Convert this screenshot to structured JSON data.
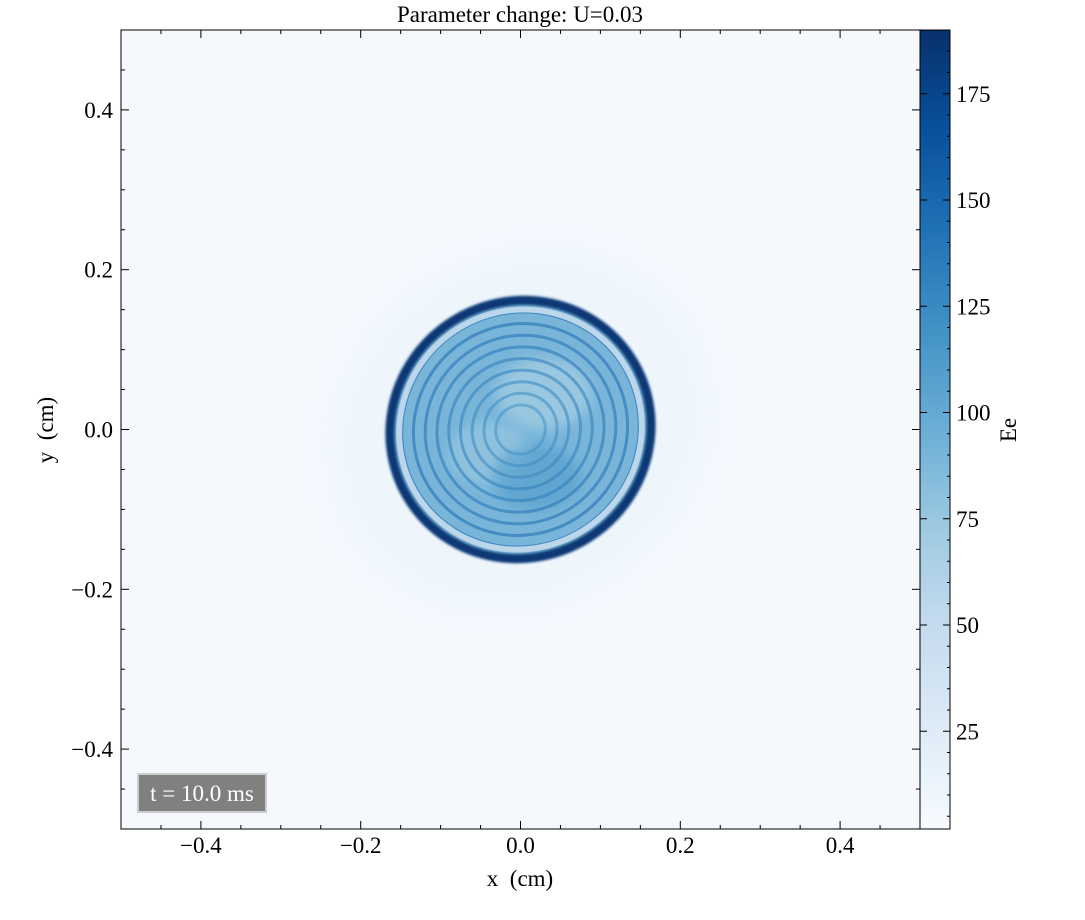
{
  "chart_data": {
    "type": "heatmap",
    "title": "Parameter change: U=0.03",
    "xlabel": "x  (cm)",
    "ylabel": "y  (cm)",
    "xlim": [
      -0.5,
      0.5
    ],
    "ylim": [
      -0.5,
      0.5
    ],
    "xticks": [
      -0.4,
      -0.2,
      0.0,
      0.2,
      0.4
    ],
    "xtick_labels": [
      "−0.4",
      "−0.2",
      "0.0",
      "0.2",
      "0.4"
    ],
    "yticks": [
      0.4,
      0.2,
      0.0,
      -0.2,
      -0.4
    ],
    "ytick_labels": [
      "0.4",
      "0.2",
      "0.0",
      "−0.2",
      "−0.4"
    ],
    "colorbar": {
      "label": "Ee",
      "range": [
        2,
        190
      ],
      "ticks": [
        25,
        50,
        75,
        100,
        125,
        150,
        175
      ],
      "tick_labels": [
        "25",
        "50",
        "75",
        "100",
        "125",
        "150",
        "175"
      ],
      "colormap": "Blues",
      "low_color": "#f7fbff",
      "high_color": "#08306b"
    },
    "field": {
      "center": [
        0.0,
        0.0
      ],
      "outer_ring_radius_x": 0.165,
      "outer_ring_radius_y": 0.16,
      "rotation_deg": 35,
      "outer_ring_value": 185,
      "interior_value": 90,
      "inner_ring_count": 9,
      "halo_radius": 0.24,
      "halo_value": 10,
      "background_value": 2
    },
    "annotation": "t = 10.0 ms",
    "grid": false
  }
}
